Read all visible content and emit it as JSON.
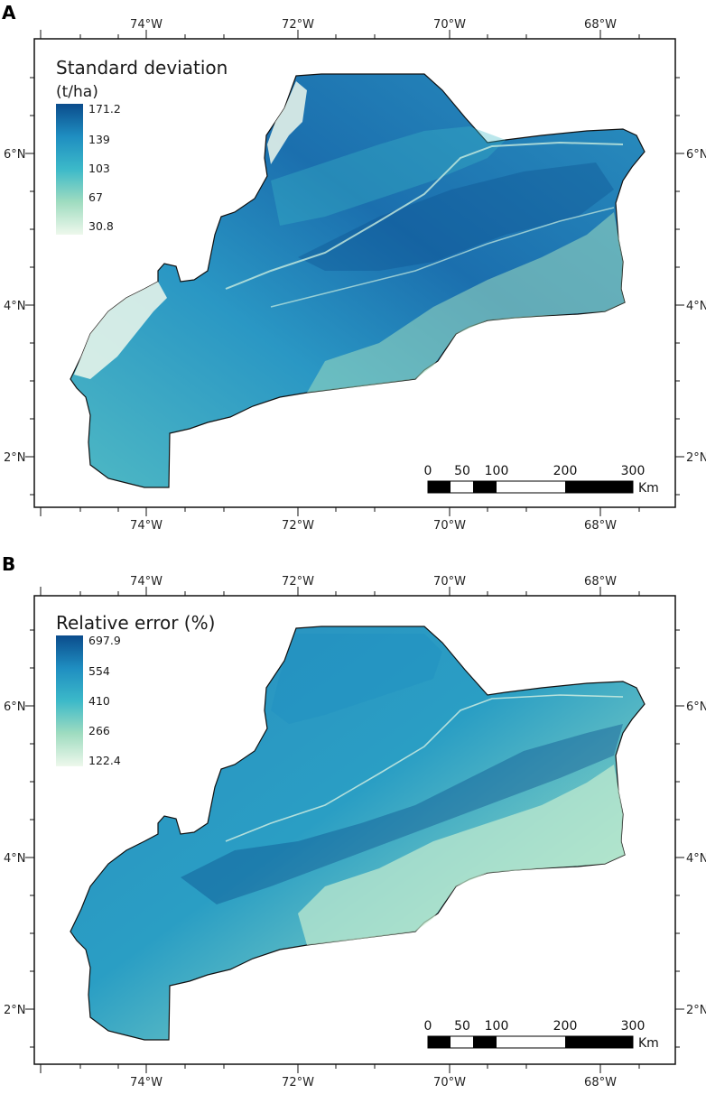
{
  "panels": [
    {
      "letter": "A",
      "legend": {
        "title": "Standard deviation",
        "unit": "(t/ha)",
        "values": [
          "171.2",
          "139",
          "103",
          "67",
          "30.8"
        ]
      },
      "lon_labels": [
        "74°W",
        "72°W",
        "70°W",
        "68°W"
      ],
      "lat_labels": [
        "6°N",
        "4°N",
        "2°N"
      ],
      "scale": {
        "ticks": [
          "0",
          "50",
          "100",
          "200",
          "300"
        ],
        "unit": "Km"
      }
    },
    {
      "letter": "B",
      "legend": {
        "title": "Relative error (%)",
        "unit": "",
        "values": [
          "697.9",
          "554",
          "410",
          "266",
          "122.4"
        ]
      },
      "lon_labels": [
        "74°W",
        "72°W",
        "70°W",
        "68°W"
      ],
      "lat_labels": [
        "6°N",
        "4°N",
        "2°N"
      ],
      "scale": {
        "ticks": [
          "0",
          "50",
          "100",
          "200",
          "300"
        ],
        "unit": "Km"
      }
    }
  ],
  "colors": {
    "ramp_high": "#0b4c8c",
    "ramp_mid_high": "#1f8ec1",
    "ramp_mid": "#3cb9c9",
    "ramp_mid_low": "#9fdcc0",
    "ramp_low": "#eef8ec",
    "outline": "#111111"
  }
}
